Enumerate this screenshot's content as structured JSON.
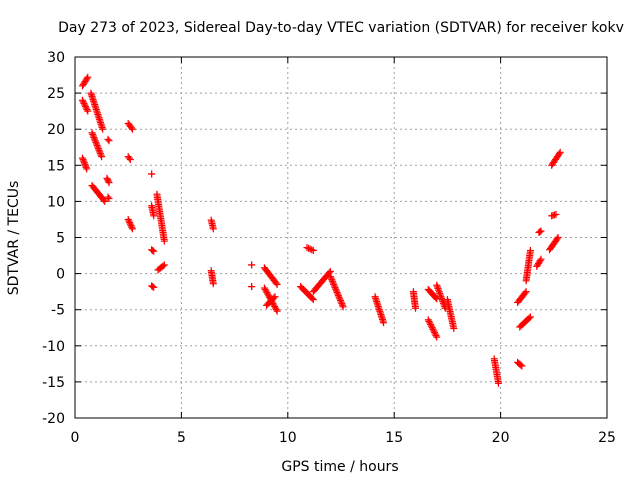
{
  "chart_data": {
    "type": "scatter",
    "title": "Day 273 of 2023, Sidereal Day-to-day VTEC variation (SDTVAR) for receiver kokv",
    "xlabel": "GPS time / hours",
    "ylabel": "SDTVAR / TECUs",
    "xlim": [
      0,
      25
    ],
    "ylim": [
      -20,
      30
    ],
    "xticks": [
      0,
      5,
      10,
      15,
      20,
      25
    ],
    "yticks": [
      -20,
      -15,
      -10,
      -5,
      0,
      5,
      10,
      15,
      20,
      25,
      30
    ],
    "grid": true,
    "marker": "+",
    "color": "#ff0000",
    "segments": [
      {
        "x": [
          0.35,
          0.6
        ],
        "y": [
          26.0,
          27.2
        ]
      },
      {
        "x": [
          0.35,
          0.6
        ],
        "y": [
          24.0,
          22.5
        ]
      },
      {
        "x": [
          0.35,
          0.55
        ],
        "y": [
          16.0,
          14.5
        ]
      },
      {
        "x": [
          0.75,
          1.3
        ],
        "y": [
          25.0,
          20.0
        ]
      },
      {
        "x": [
          0.8,
          1.25
        ],
        "y": [
          19.5,
          16.2
        ]
      },
      {
        "x": [
          0.8,
          1.4
        ],
        "y": [
          12.2,
          10.0
        ]
      },
      {
        "x": [
          1.5,
          1.6
        ],
        "y": [
          13.2,
          12.6
        ]
      },
      {
        "x": [
          1.55,
          1.6
        ],
        "y": [
          10.6,
          10.4
        ]
      },
      {
        "x": [
          1.55,
          1.6
        ],
        "y": [
          18.6,
          18.4
        ]
      },
      {
        "x": [
          2.5,
          2.7
        ],
        "y": [
          20.8,
          20.0
        ]
      },
      {
        "x": [
          2.5,
          2.6
        ],
        "y": [
          16.2,
          15.8
        ]
      },
      {
        "x": [
          2.5,
          2.7
        ],
        "y": [
          7.5,
          6.2
        ]
      },
      {
        "x": [
          3.6,
          3.6
        ],
        "y": [
          13.8,
          13.8
        ]
      },
      {
        "x": [
          3.6,
          3.7
        ],
        "y": [
          9.4,
          8.0
        ]
      },
      {
        "x": [
          3.6,
          3.7
        ],
        "y": [
          3.3,
          3.1
        ]
      },
      {
        "x": [
          3.6,
          3.7
        ],
        "y": [
          -1.7,
          -1.9
        ]
      },
      {
        "x": [
          3.85,
          4.2
        ],
        "y": [
          11.0,
          4.5
        ]
      },
      {
        "x": [
          3.9,
          4.2
        ],
        "y": [
          0.5,
          1.2
        ]
      },
      {
        "x": [
          6.4,
          6.5
        ],
        "y": [
          7.4,
          6.2
        ]
      },
      {
        "x": [
          6.4,
          6.5
        ],
        "y": [
          0.4,
          -1.4
        ]
      },
      {
        "x": [
          8.3,
          8.3
        ],
        "y": [
          1.2,
          1.2
        ]
      },
      {
        "x": [
          8.3,
          8.3
        ],
        "y": [
          -1.8,
          -1.8
        ]
      },
      {
        "x": [
          8.9,
          9.5
        ],
        "y": [
          0.8,
          -1.5
        ]
      },
      {
        "x": [
          8.9,
          9.5
        ],
        "y": [
          -2.0,
          -5.2
        ]
      },
      {
        "x": [
          9.0,
          9.4
        ],
        "y": [
          -4.4,
          -3.2
        ]
      },
      {
        "x": [
          10.6,
          11.2
        ],
        "y": [
          -1.8,
          -3.6
        ]
      },
      {
        "x": [
          10.9,
          11.2
        ],
        "y": [
          3.6,
          3.2
        ]
      },
      {
        "x": [
          11.2,
          12.0
        ],
        "y": [
          -2.5,
          0.3
        ]
      },
      {
        "x": [
          12.0,
          12.6
        ],
        "y": [
          -0.4,
          -4.6
        ]
      },
      {
        "x": [
          14.1,
          14.5
        ],
        "y": [
          -3.2,
          -6.8
        ]
      },
      {
        "x": [
          15.9,
          16.0
        ],
        "y": [
          -2.5,
          -4.8
        ]
      },
      {
        "x": [
          16.6,
          17.0
        ],
        "y": [
          -2.2,
          -3.5
        ]
      },
      {
        "x": [
          16.6,
          17.0
        ],
        "y": [
          -6.4,
          -8.8
        ]
      },
      {
        "x": [
          17.0,
          17.4
        ],
        "y": [
          -1.6,
          -4.8
        ]
      },
      {
        "x": [
          17.5,
          17.8
        ],
        "y": [
          -3.6,
          -7.6
        ]
      },
      {
        "x": [
          19.7,
          19.9
        ],
        "y": [
          -11.8,
          -15.2
        ]
      },
      {
        "x": [
          20.8,
          21.2
        ],
        "y": [
          -4.0,
          -2.5
        ]
      },
      {
        "x": [
          20.8,
          21.0
        ],
        "y": [
          -12.3,
          -12.8
        ]
      },
      {
        "x": [
          20.9,
          21.4
        ],
        "y": [
          -7.4,
          -6.0
        ]
      },
      {
        "x": [
          21.2,
          21.4
        ],
        "y": [
          -1.0,
          3.2
        ]
      },
      {
        "x": [
          21.8,
          21.9
        ],
        "y": [
          5.7,
          5.9
        ]
      },
      {
        "x": [
          21.7,
          21.9
        ],
        "y": [
          1.0,
          2.0
        ]
      },
      {
        "x": [
          22.3,
          22.7
        ],
        "y": [
          3.3,
          5.0
        ]
      },
      {
        "x": [
          22.4,
          22.6
        ],
        "y": [
          8.0,
          8.2
        ]
      },
      {
        "x": [
          22.4,
          22.8
        ],
        "y": [
          15.0,
          16.8
        ]
      }
    ]
  }
}
